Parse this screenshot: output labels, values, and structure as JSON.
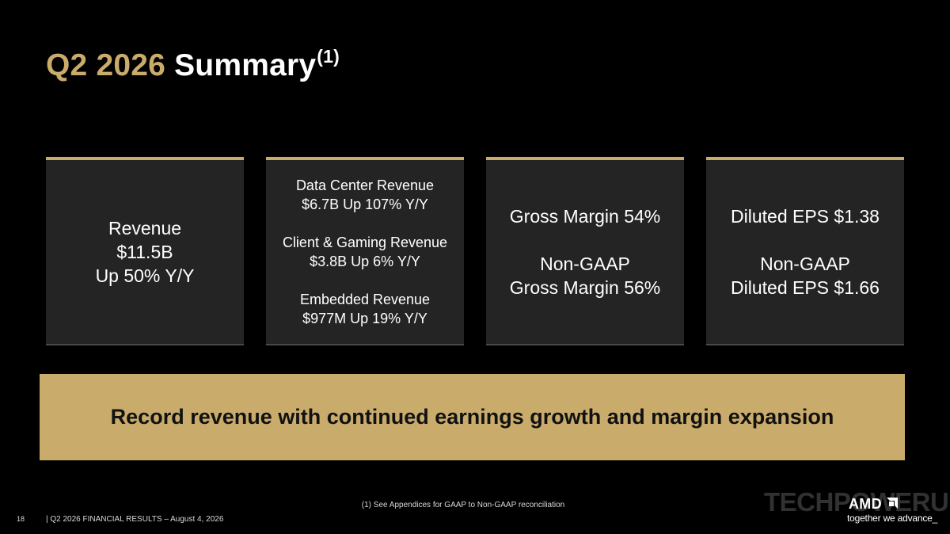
{
  "title": {
    "accent": "Q2 2026",
    "main": "Summary",
    "superscript": "(1)"
  },
  "cards": [
    {
      "lines": [
        "Revenue",
        "$11.5B",
        "Up 50% Y/Y"
      ]
    },
    {
      "groups": [
        [
          "Data Center Revenue",
          "$6.7B Up 107% Y/Y"
        ],
        [
          "Client & Gaming Revenue",
          "$3.8B Up 6% Y/Y"
        ],
        [
          "Embedded Revenue",
          "$977M Up 19% Y/Y"
        ]
      ]
    },
    {
      "groups": [
        [
          "Gross Margin 54%"
        ],
        [
          "Non-GAAP",
          "Gross Margin 56%"
        ]
      ]
    },
    {
      "groups": [
        [
          "Diluted EPS $1.38"
        ],
        [
          "Non-GAAP",
          "Diluted EPS $1.66"
        ]
      ]
    }
  ],
  "banner": "Record revenue with continued earnings growth and margin expansion",
  "footnote": "(1) See Appendices for GAAP to Non-GAAP reconciliation",
  "footer": {
    "page_number": "18",
    "text": "|   Q2 2026 FINANCIAL RESULTS – August 4, 2026"
  },
  "watermark": "TECHPOWERUP",
  "logo": {
    "word": "AMD",
    "tagline": "together we advance_"
  },
  "colors": {
    "accent": "#c9ab6b",
    "background": "#000000",
    "card": "#242424"
  }
}
